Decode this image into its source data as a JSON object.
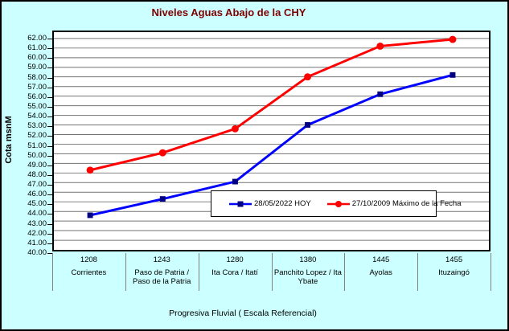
{
  "chart_data": {
    "type": "line",
    "title": "Niveles Aguas Abajo de la CHY",
    "xlabel": "Progresiva Fluvial ( Escala Referencial)",
    "ylabel": "Cota msnM",
    "ylim": [
      40,
      62
    ],
    "ytick_step": 1,
    "ytick_format": "two-decimals",
    "grid": "horizontal",
    "legend_position": "inside-bottom-right",
    "categories": [
      {
        "km": "1208",
        "name": "Corrientes"
      },
      {
        "km": "1243",
        "name": "Paso de Patria / Paso de la Patria"
      },
      {
        "km": "1280",
        "name": "Ita Cora / Itatí"
      },
      {
        "km": "1380",
        "name": "Panchito Lopez / Ita Ybate"
      },
      {
        "km": "1445",
        "name": "Ayolas"
      },
      {
        "km": "1455",
        "name": "Ituzaingó"
      }
    ],
    "series": [
      {
        "name": "28/05/2022 HOY",
        "color": "#0000FF",
        "marker": "square",
        "marker_color": "#000080",
        "values": [
          43.6,
          45.3,
          47.1,
          53.0,
          56.2,
          58.2
        ]
      },
      {
        "name": "27/10/2009 Máximo de la Fecha",
        "color": "#FF0000",
        "marker": "circle",
        "marker_color": "#FF0000",
        "values": [
          48.3,
          50.1,
          52.6,
          58.0,
          61.2,
          61.9
        ]
      }
    ]
  },
  "colors": {
    "background": "#CCFFFF",
    "plot_background": "#FFFFFF",
    "gridline": "#737373",
    "border": "#000000",
    "title_color": "#800000"
  }
}
